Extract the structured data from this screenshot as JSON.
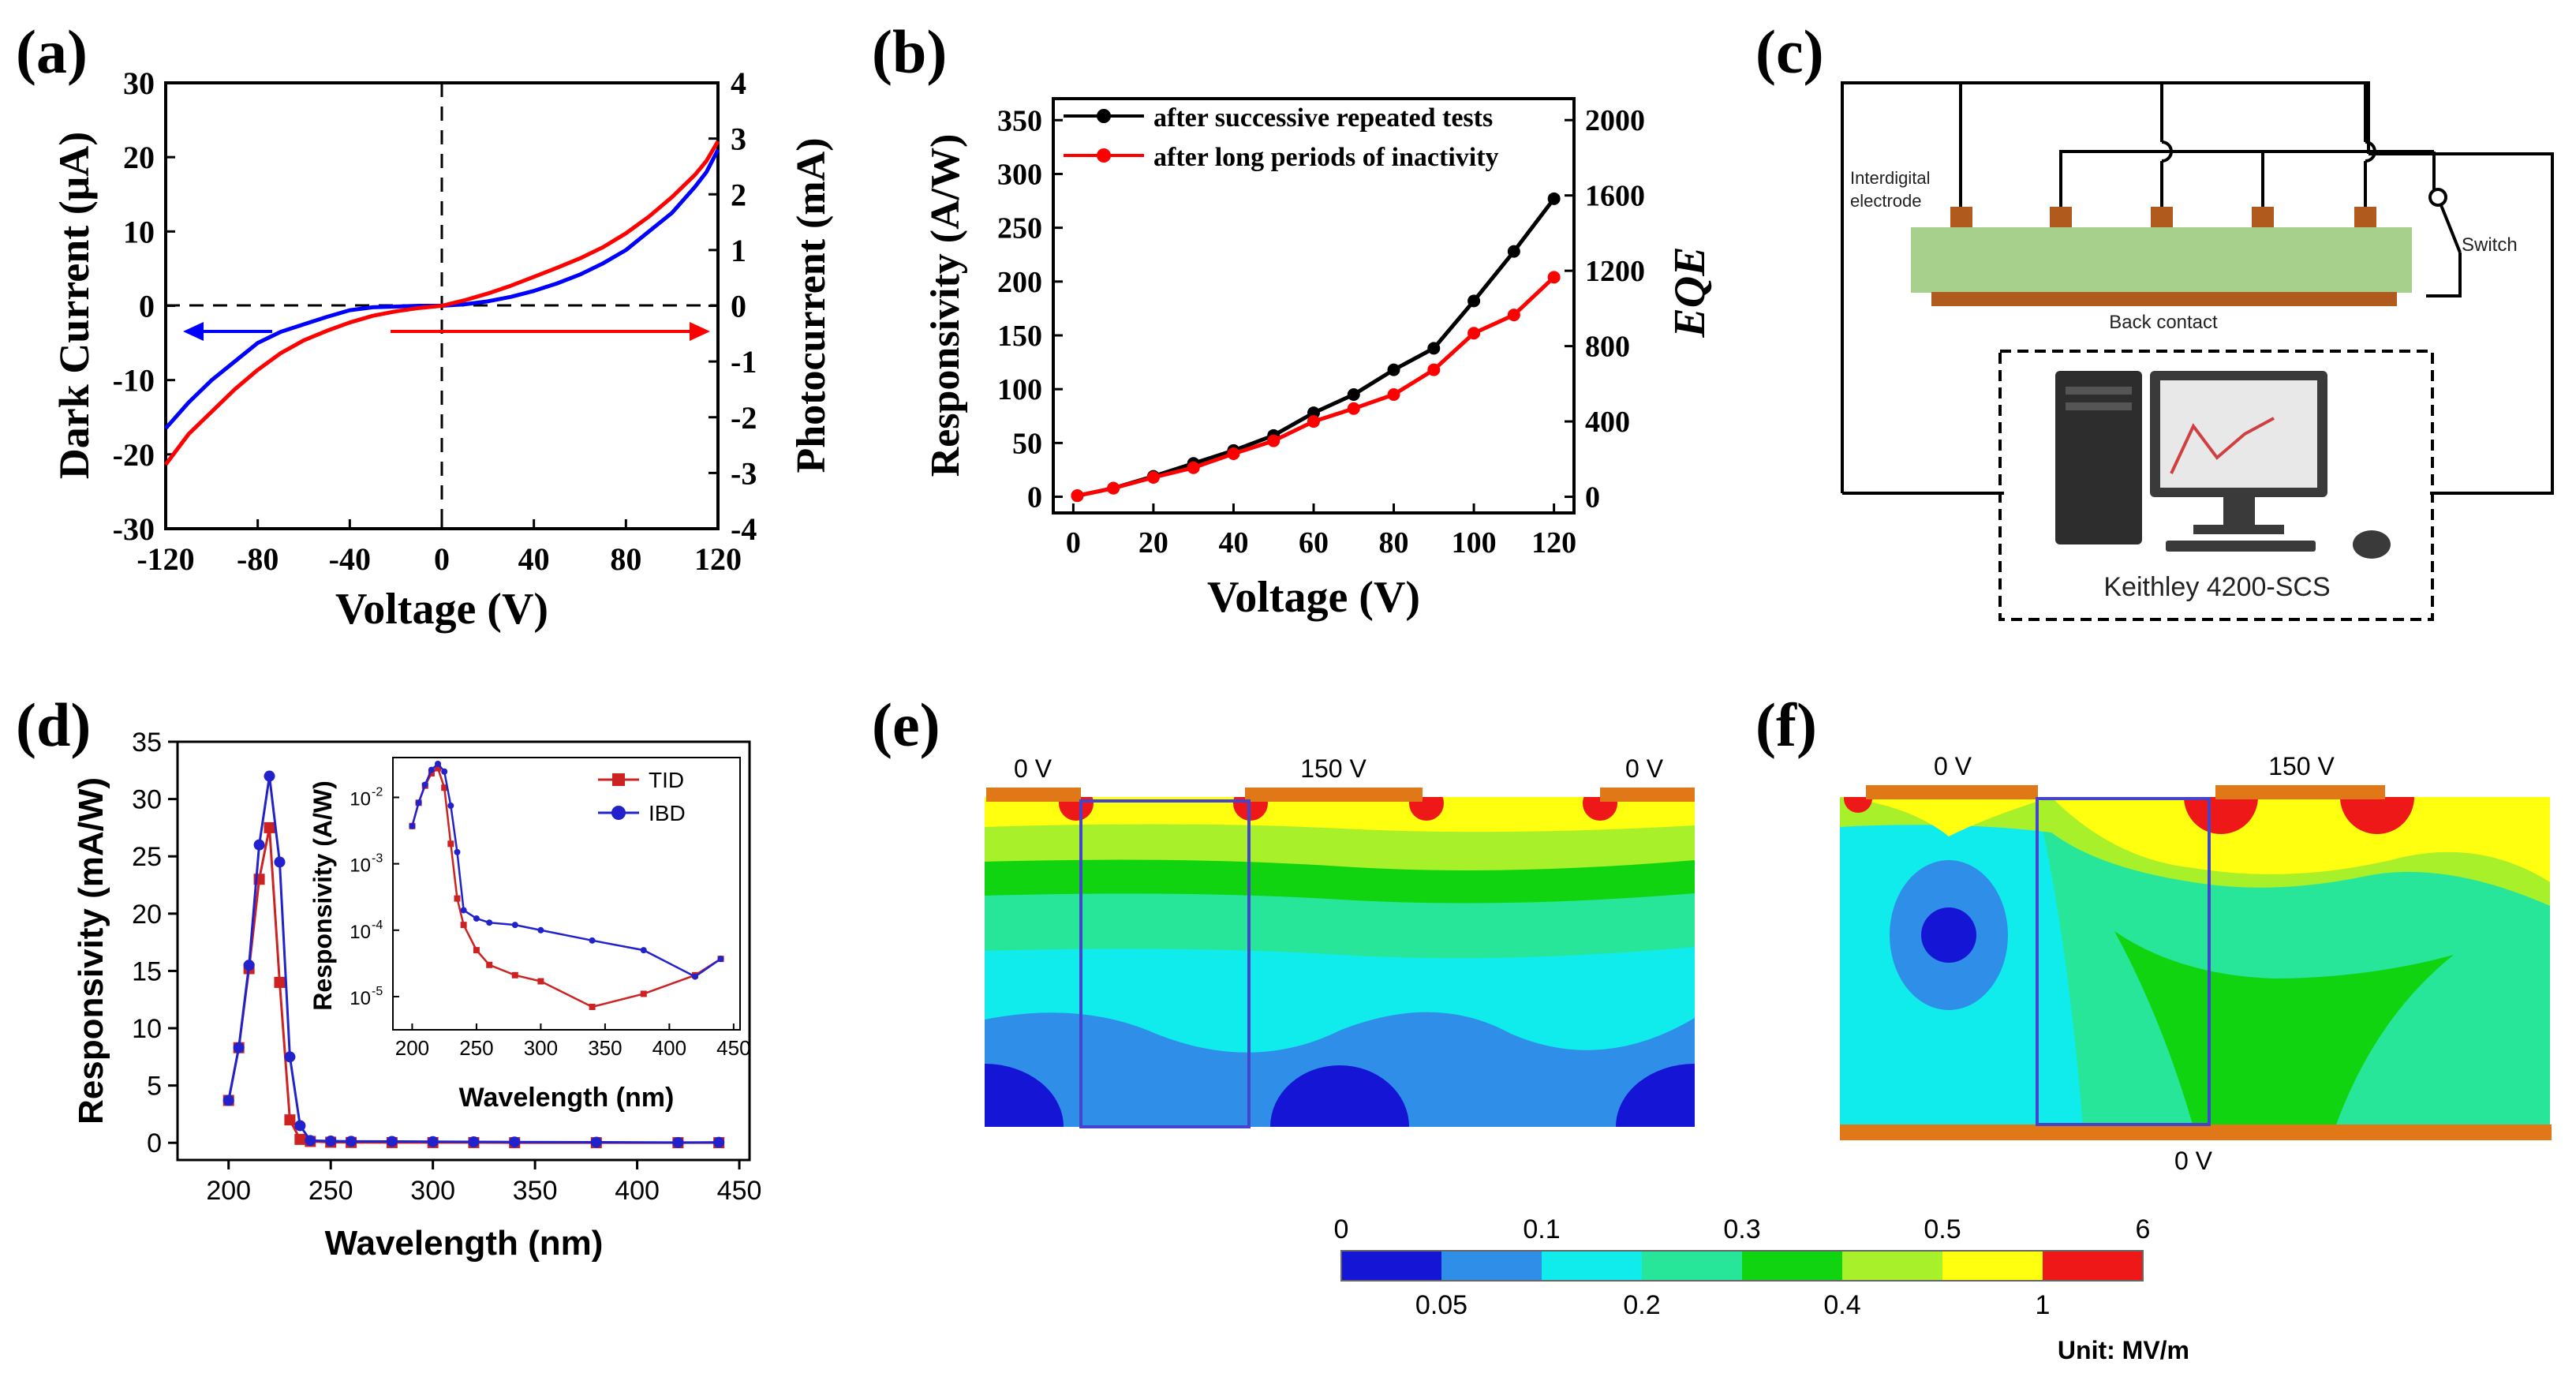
{
  "panels": {
    "a": "(a)",
    "b": "(b)",
    "c": "(c)",
    "d": "(d)",
    "e": "(e)",
    "f": "(f)"
  },
  "chart_data": [
    {
      "id": "a",
      "type": "line",
      "xlabel": "Voltage (V)",
      "ylabel": "Dark Current (μA)",
      "y2label": "Photocurrent (mA)",
      "xlim": [
        -120,
        120
      ],
      "ylim": [
        -30,
        30
      ],
      "y2lim": [
        -4,
        4
      ],
      "xticks": [
        "-120",
        "-80",
        "-40",
        "0",
        "40",
        "80",
        "120"
      ],
      "yticks": [
        "-30",
        "-20",
        "-10",
        "0",
        "10",
        "20",
        "30"
      ],
      "y2ticks": [
        "-4",
        "-3",
        "-2",
        "-1",
        "0",
        "1",
        "2",
        "3",
        "4"
      ],
      "series": [
        {
          "name": "Dark Current",
          "color": "#0000ff",
          "axis": "left",
          "x": [
            -120,
            -110,
            -100,
            -90,
            -80,
            -70,
            -60,
            -50,
            -40,
            -30,
            -20,
            -10,
            0,
            10,
            20,
            30,
            40,
            50,
            60,
            70,
            80,
            90,
            100,
            110,
            115,
            120
          ],
          "y": [
            -16.5,
            -13,
            -10,
            -7.5,
            -5,
            -3.5,
            -2.5,
            -1.5,
            -0.6,
            -0.2,
            -0.1,
            0,
            0,
            0.2,
            0.6,
            1.2,
            2,
            3,
            4.2,
            5.7,
            7.5,
            10,
            12.5,
            16,
            18,
            21
          ]
        },
        {
          "name": "Photocurrent",
          "color": "#ff0000",
          "axis": "right",
          "x": [
            -120,
            -110,
            -100,
            -90,
            -80,
            -70,
            -60,
            -50,
            -40,
            -30,
            -20,
            -10,
            0,
            10,
            20,
            30,
            40,
            50,
            60,
            70,
            80,
            90,
            100,
            110,
            115,
            120
          ],
          "y": [
            -2.85,
            -2.3,
            -1.9,
            -1.5,
            -1.15,
            -0.85,
            -0.62,
            -0.45,
            -0.3,
            -0.18,
            -0.1,
            -0.04,
            0,
            0.1,
            0.22,
            0.36,
            0.52,
            0.68,
            0.85,
            1.05,
            1.3,
            1.6,
            1.95,
            2.35,
            2.6,
            2.95
          ]
        }
      ]
    },
    {
      "id": "b",
      "type": "line",
      "xlabel": "Voltage (V)",
      "ylabel": "Responsivity (A/W)",
      "y2label": "EQE",
      "xlim": [
        -5,
        125
      ],
      "ylim": [
        -15,
        370
      ],
      "y2lim": [
        -85.7,
        2114
      ],
      "xticks": [
        "0",
        "20",
        "40",
        "60",
        "80",
        "100",
        "120"
      ],
      "yticks": [
        "0",
        "50",
        "100",
        "150",
        "200",
        "250",
        "300",
        "350"
      ],
      "y2ticks": [
        "0",
        "400",
        "800",
        "1200",
        "1600",
        "2000"
      ],
      "series": [
        {
          "name": "after successive repeated tests",
          "color": "#000000",
          "x": [
            1,
            10,
            20,
            30,
            40,
            50,
            60,
            70,
            80,
            90,
            100,
            110,
            120
          ],
          "y": [
            1,
            8,
            19,
            31,
            43,
            57,
            78,
            95,
            118,
            138,
            182,
            228,
            277
          ]
        },
        {
          "name": "after long periods of inactivity",
          "color": "#ff0000",
          "x": [
            1,
            10,
            20,
            30,
            40,
            50,
            60,
            70,
            80,
            90,
            100,
            110,
            120
          ],
          "y": [
            1,
            8,
            18,
            27,
            40,
            52,
            70,
            82,
            95,
            118,
            152,
            169,
            204
          ]
        }
      ]
    },
    {
      "id": "d",
      "type": "line",
      "xlabel": "Wavelength (nm)",
      "ylabel": "Responsivity (mA/W)",
      "xlim": [
        175,
        455
      ],
      "ylim": [
        -1.5,
        35
      ],
      "xticks": [
        "200",
        "250",
        "300",
        "350",
        "400",
        "450"
      ],
      "yticks": [
        "0",
        "5",
        "10",
        "15",
        "20",
        "25",
        "30",
        "35"
      ],
      "series": [
        {
          "name": "TID",
          "color": "#cc2222",
          "x": [
            200,
            205,
            210,
            215,
            220,
            225,
            230,
            235,
            240,
            250,
            260,
            280,
            300,
            320,
            340,
            380,
            420,
            440
          ],
          "y": [
            3.7,
            8.3,
            15.2,
            23,
            27.5,
            14,
            2,
            0.3,
            0.12,
            0.05,
            0.03,
            0.02,
            0.02,
            0.02,
            0.01,
            0.01,
            0.01,
            0.01
          ]
        },
        {
          "name": "IBD",
          "color": "#2222cc",
          "x": [
            200,
            205,
            210,
            215,
            220,
            225,
            230,
            235,
            240,
            250,
            260,
            280,
            300,
            320,
            340,
            380,
            420,
            440
          ],
          "y": [
            3.7,
            8.3,
            15.5,
            26,
            32,
            24.5,
            7.5,
            1.5,
            0.2,
            0.15,
            0.13,
            0.12,
            0.1,
            0.08,
            0.07,
            0.05,
            0.02,
            0.04
          ]
        }
      ],
      "inset": {
        "xlabel": "Wavelength (nm)",
        "ylabel": "Responsivity (A/W)",
        "xlim": [
          185,
          455
        ],
        "ylog": [
          -5.5,
          -1.4
        ],
        "xticks": [
          "200",
          "250",
          "300",
          "350",
          "400",
          "450"
        ],
        "yticks": [
          "10",
          "10",
          "10",
          "10"
        ],
        "yexp": [
          "-5",
          "-4",
          "-3",
          "-2"
        ],
        "series": [
          {
            "name": "TID",
            "color": "#cc2222",
            "x": [
              200,
              205,
              210,
              215,
              220,
              225,
              230,
              235,
              240,
              250,
              260,
              280,
              300,
              340,
              380,
              420,
              440
            ],
            "y": [
              0.0037,
              0.0083,
              0.015,
              0.023,
              0.0275,
              0.014,
              0.002,
              0.0003,
              0.00012,
              5e-05,
              3e-05,
              2.1e-05,
              1.7e-05,
              7e-06,
              1.1e-05,
              2.1e-05,
              3.7e-05
            ]
          },
          {
            "name": "IBD",
            "color": "#2222cc",
            "x": [
              200,
              205,
              210,
              215,
              220,
              225,
              230,
              235,
              240,
              250,
              260,
              280,
              300,
              340,
              380,
              420,
              440
            ],
            "y": [
              0.0037,
              0.0083,
              0.0155,
              0.026,
              0.032,
              0.0245,
              0.0075,
              0.0015,
              0.0002,
              0.00015,
              0.00013,
              0.00012,
              0.0001,
              7e-05,
              5e-05,
              2e-05,
              3.7e-05
            ]
          }
        ]
      }
    }
  ],
  "panel_c": {
    "interdigital_label_1": "Interdigital",
    "interdigital_label_2": "electrode",
    "switch_label": "Switch",
    "back_contact_label": "Back contact",
    "instrument_label": "Keithley 4200-SCS"
  },
  "panel_e": {
    "left_voltage": "0 V",
    "center_voltage": "150 V",
    "right_voltage": "0 V"
  },
  "panel_f": {
    "left_voltage": "0 V",
    "right_voltage": "150 V",
    "bottom_voltage": "0 V"
  },
  "colorbar": {
    "top_labels": [
      "0",
      "0.1",
      "0.3",
      "0.5",
      "6"
    ],
    "bottom_labels": [
      "0.05",
      "0.2",
      "0.4",
      "1"
    ],
    "unit": "Unit: MV/m",
    "colors": [
      "#1515d5",
      "#2e8ee8",
      "#10ecec",
      "#27e69a",
      "#10d410",
      "#a8f02a",
      "#ffff10",
      "#ee1818"
    ]
  }
}
